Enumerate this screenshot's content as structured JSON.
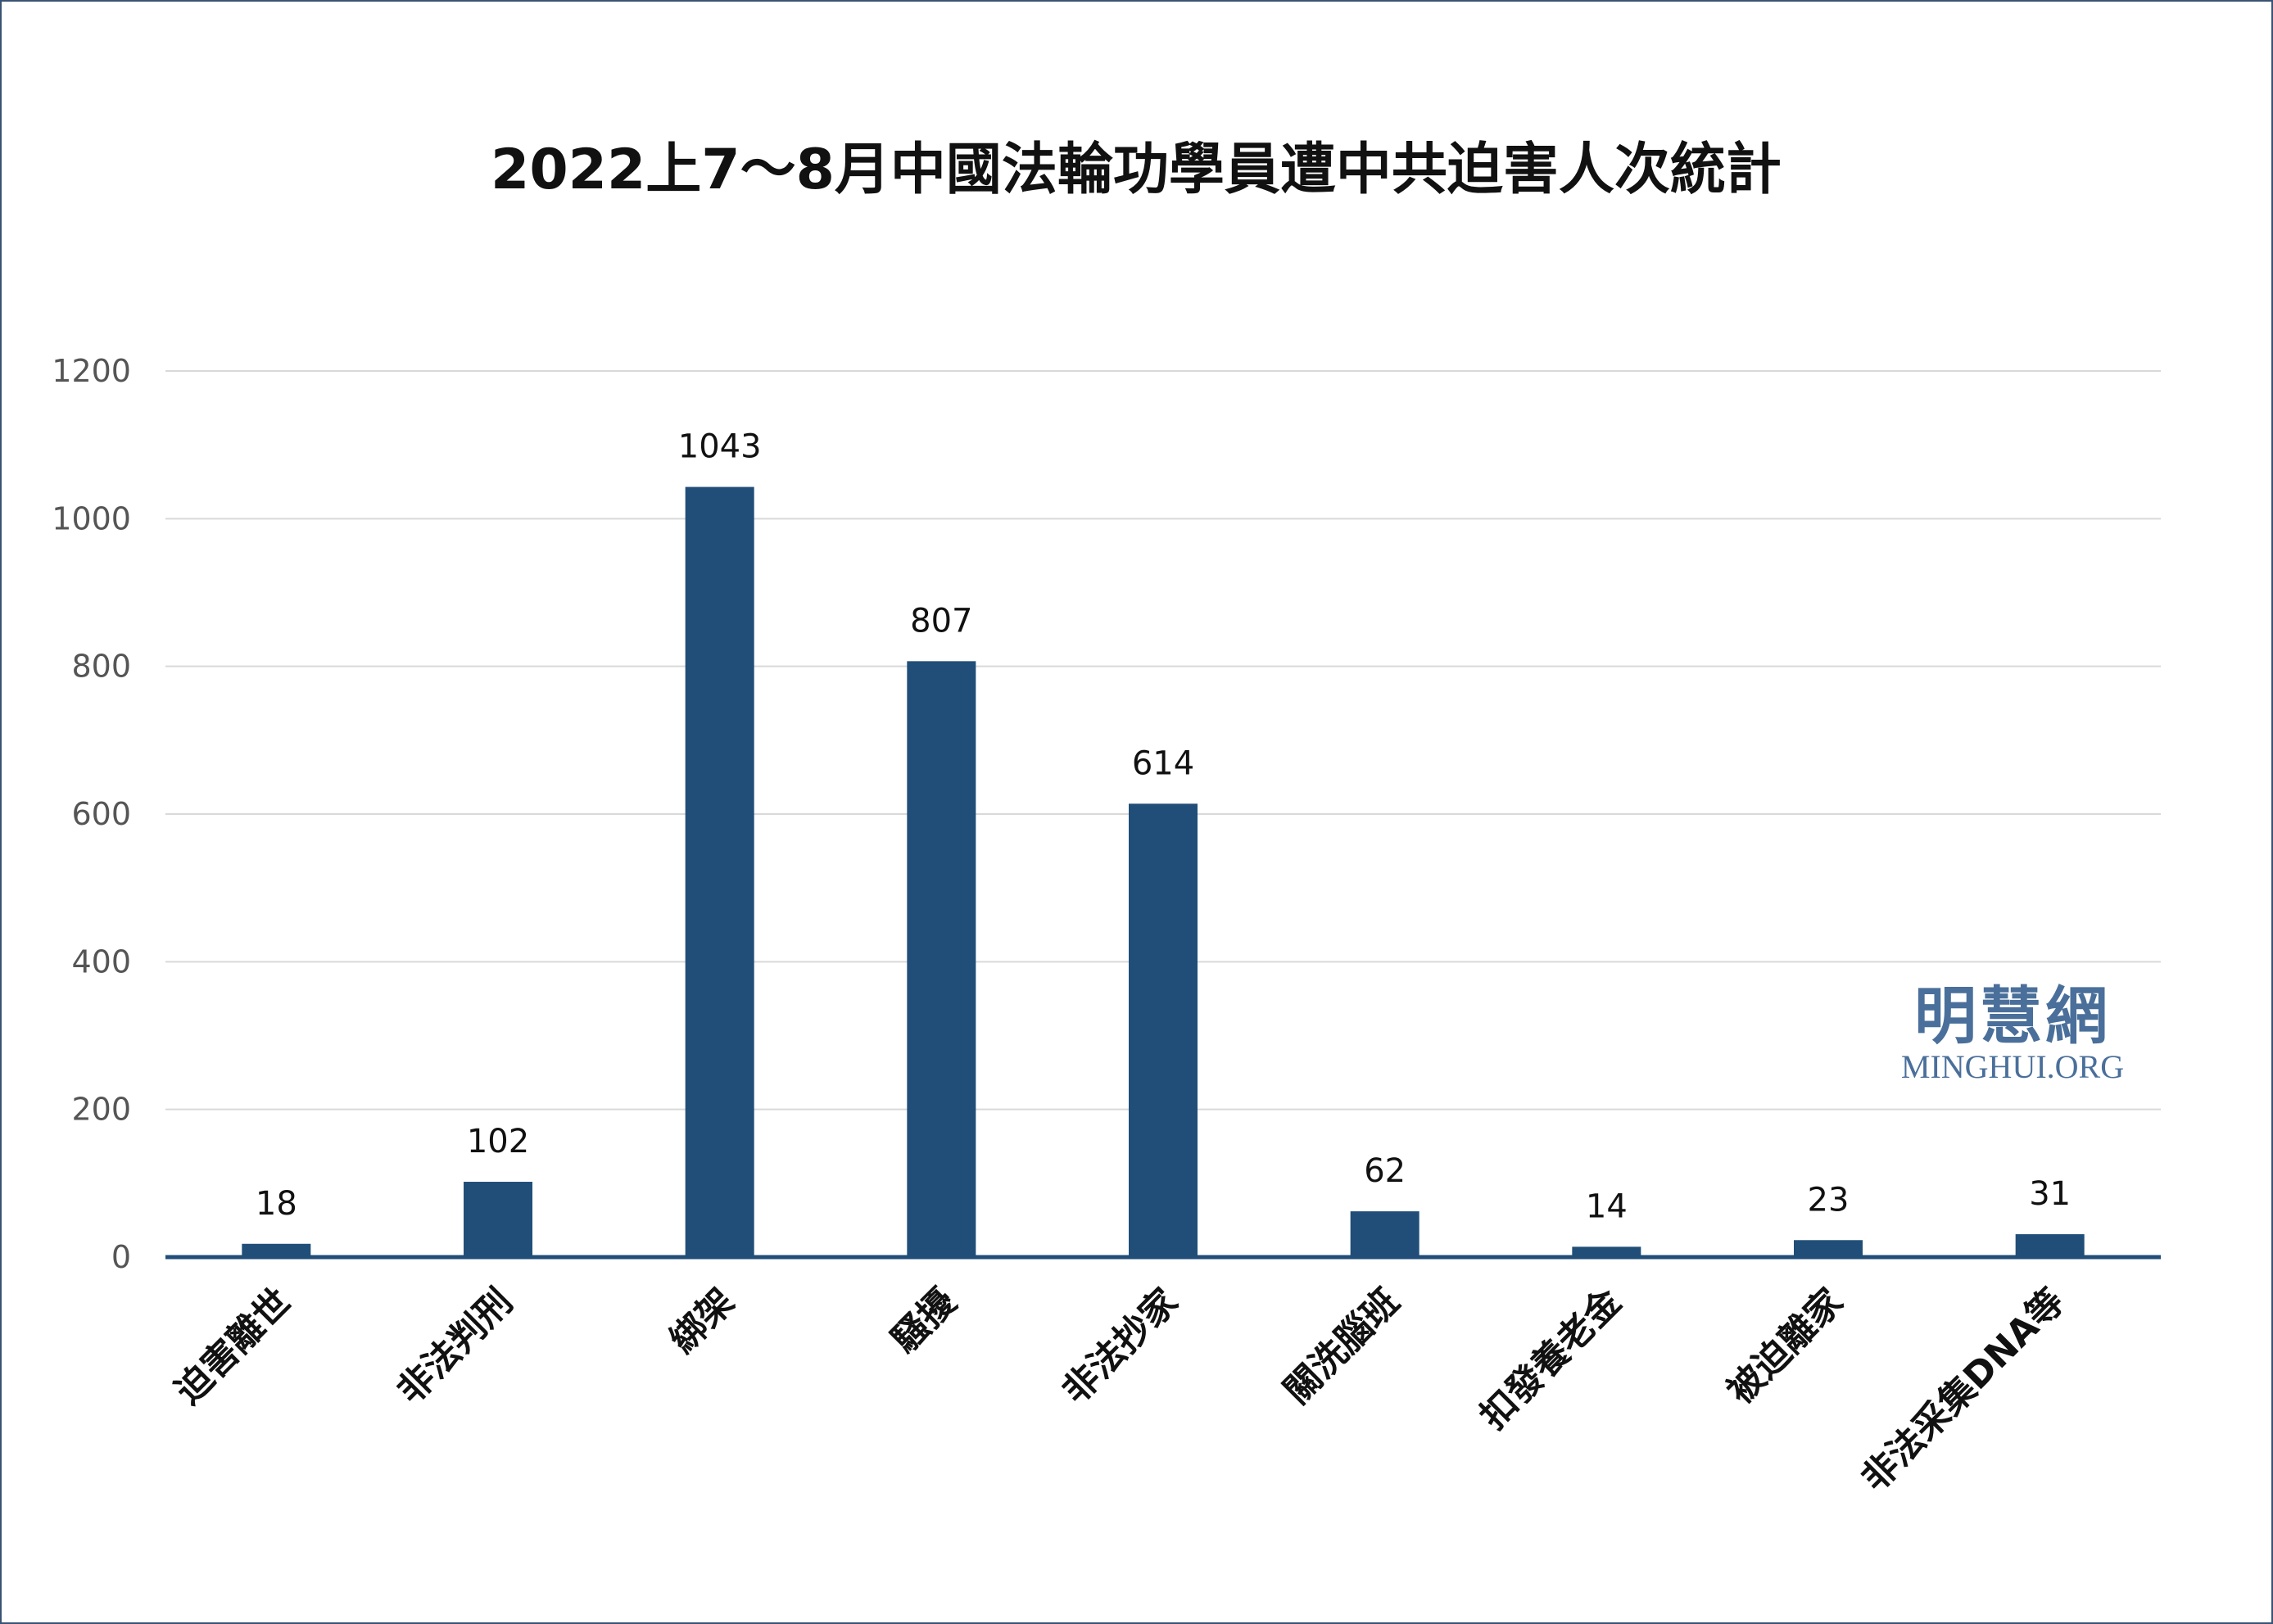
{
  "chart_data": {
    "type": "bar",
    "title": "2022上7～8月中國法輪功學員遭中共迫害人次統計",
    "categories": [
      "迫害離世",
      "非法判刑",
      "綁架",
      "騷擾",
      "非法抄家",
      "關洗腦班",
      "扣發養老金",
      "被迫離家",
      "非法采集DNA等"
    ],
    "values": [
      18,
      102,
      1043,
      807,
      614,
      62,
      14,
      23,
      31
    ],
    "ylim": [
      0,
      1200
    ],
    "yticks": [
      0,
      200,
      400,
      600,
      800,
      1000,
      1200
    ],
    "grid": true,
    "bar_color": "#204e78",
    "xlabel": "",
    "ylabel": ""
  },
  "watermark": {
    "name": "明慧網",
    "site": "MINGHUI.ORG"
  }
}
